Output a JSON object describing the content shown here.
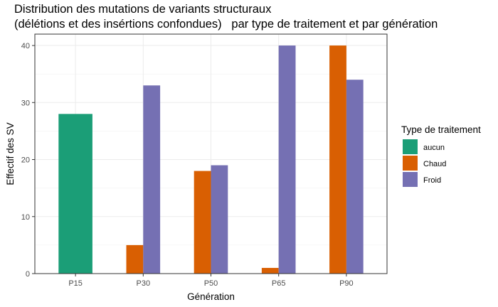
{
  "chart_data": {
    "type": "bar",
    "title_lines": [
      "Distribution des mutations de variants structuraux",
      "(délétions et des insértions confondues)   par type de traitement et par génération"
    ],
    "xlabel": "Génération",
    "ylabel": "Effectif des SV",
    "categories": [
      "P15",
      "P30",
      "P50",
      "P65",
      "P90"
    ],
    "ylim": [
      0,
      42
    ],
    "yticks": [
      0,
      10,
      20,
      30,
      40
    ],
    "grid": true,
    "legend": {
      "title": "Type de traitement",
      "position": "right"
    },
    "series": [
      {
        "name": "aucun",
        "color": "#1b9e77",
        "values": [
          28,
          null,
          null,
          null,
          null
        ]
      },
      {
        "name": "Chaud",
        "color": "#d95f02",
        "values": [
          null,
          5,
          18,
          1,
          40
        ]
      },
      {
        "name": "Froid",
        "color": "#7570b3",
        "values": [
          null,
          33,
          19,
          40,
          34
        ]
      }
    ]
  }
}
